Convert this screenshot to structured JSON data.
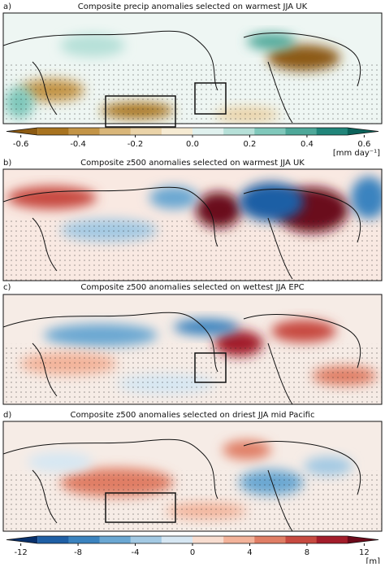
{
  "panels": [
    {
      "label": "a)",
      "title": "Composite precip anomalies selected on warmest JJA UK"
    },
    {
      "label": "b)",
      "title": "Composite z500 anomalies selected on warmest JJA UK"
    },
    {
      "label": "c)",
      "title": "Composite z500 anomalies selected on wettest JJA EPC"
    },
    {
      "label": "d)",
      "title": "Composite z500 anomalies selected on driest JJA mid Pacific"
    }
  ],
  "colorbars": [
    {
      "lim": [
        -0.65,
        0.65
      ],
      "ticks": [
        -0.6,
        -0.4,
        -0.2,
        {
          "value": 0,
          "label": "0.0"
        },
        0.2,
        0.4,
        0.6
      ],
      "units": "[mm day⁻¹]",
      "colors": [
        "#8c5a12",
        "#a8731f",
        "#c39446",
        "#d9b679",
        "#ead3a8",
        "#f6ebd3",
        "#e0f1ee",
        "#b6e0d8",
        "#80c8bb",
        "#4ea899",
        "#21857a",
        "#0b625a"
      ]
    },
    {
      "lim": [
        -13,
        13
      ],
      "ticks": [
        -12,
        -8,
        -4,
        0,
        4,
        8,
        12
      ],
      "units": "[m]",
      "colors": [
        "#08306b",
        "#1f5fa5",
        "#3b83bf",
        "#6aa7d2",
        "#a3c9e3",
        "#d6e7f3",
        "#f8ddd0",
        "#f3b39a",
        "#e07e65",
        "#c74a40",
        "#a31d2a",
        "#6b0a1a"
      ]
    }
  ]
}
